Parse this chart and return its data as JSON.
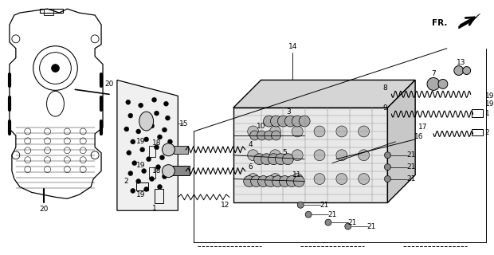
{
  "bg_color": "#ffffff",
  "line_color": "#000000",
  "fig_width": 6.2,
  "fig_height": 3.2,
  "dpi": 100,
  "fr_label": "FR."
}
